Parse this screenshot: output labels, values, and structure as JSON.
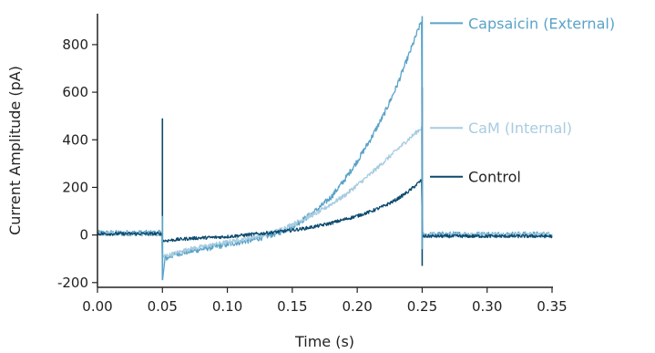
{
  "chart_data": {
    "type": "line",
    "xlabel": "Time (s)",
    "ylabel": "Current Amplitude (pA)",
    "xlim": [
      0.0,
      0.35
    ],
    "ylim": [
      -220,
      930
    ],
    "x_ticks": [
      "0.00",
      "0.05",
      "0.10",
      "0.15",
      "0.20",
      "0.25",
      "0.30",
      "0.35"
    ],
    "x_tick_values": [
      0.0,
      0.05,
      0.1,
      0.15,
      0.2,
      0.25,
      0.3,
      0.35
    ],
    "y_ticks": [
      "-200",
      "0",
      "200",
      "400",
      "600",
      "800"
    ],
    "y_tick_values": [
      -200,
      0,
      200,
      400,
      600,
      800
    ],
    "grid": false,
    "legend_placement": "right, inline labels",
    "series": [
      {
        "name": "Capsaicin (External)",
        "color": "#5aa3c8",
        "noise": 12,
        "points": [
          [
            0.0,
            8
          ],
          [
            0.0495,
            8
          ],
          [
            0.0502,
            -190
          ],
          [
            0.052,
            -100
          ],
          [
            0.06,
            -80
          ],
          [
            0.07,
            -70
          ],
          [
            0.08,
            -60
          ],
          [
            0.09,
            -50
          ],
          [
            0.1,
            -40
          ],
          [
            0.11,
            -30
          ],
          [
            0.12,
            -20
          ],
          [
            0.13,
            -5
          ],
          [
            0.14,
            10
          ],
          [
            0.15,
            35
          ],
          [
            0.16,
            70
          ],
          [
            0.17,
            110
          ],
          [
            0.18,
            160
          ],
          [
            0.19,
            230
          ],
          [
            0.2,
            310
          ],
          [
            0.21,
            400
          ],
          [
            0.22,
            500
          ],
          [
            0.23,
            620
          ],
          [
            0.24,
            760
          ],
          [
            0.2495,
            900
          ],
          [
            0.2502,
            0
          ],
          [
            0.27,
            2
          ],
          [
            0.35,
            2
          ]
        ]
      },
      {
        "name": "CaM (Internal)",
        "color": "#a8cce0",
        "noise": 9,
        "points": [
          [
            0.0,
            5
          ],
          [
            0.0495,
            5
          ],
          [
            0.0502,
            -90
          ],
          [
            0.055,
            -85
          ],
          [
            0.07,
            -60
          ],
          [
            0.08,
            -50
          ],
          [
            0.09,
            -40
          ],
          [
            0.1,
            -30
          ],
          [
            0.11,
            -20
          ],
          [
            0.12,
            -10
          ],
          [
            0.13,
            5
          ],
          [
            0.14,
            20
          ],
          [
            0.15,
            45
          ],
          [
            0.16,
            70
          ],
          [
            0.17,
            95
          ],
          [
            0.18,
            130
          ],
          [
            0.19,
            165
          ],
          [
            0.2,
            210
          ],
          [
            0.21,
            255
          ],
          [
            0.22,
            305
          ],
          [
            0.23,
            355
          ],
          [
            0.24,
            405
          ],
          [
            0.2495,
            450
          ],
          [
            0.2502,
            0
          ],
          [
            0.27,
            0
          ],
          [
            0.35,
            0
          ]
        ]
      },
      {
        "name": "Control",
        "color": "#0d4a6e",
        "noise": 7,
        "points": [
          [
            0.0,
            5
          ],
          [
            0.0495,
            5
          ],
          [
            0.0502,
            -25
          ],
          [
            0.06,
            -20
          ],
          [
            0.07,
            -15
          ],
          [
            0.08,
            -12
          ],
          [
            0.09,
            -10
          ],
          [
            0.1,
            -7
          ],
          [
            0.11,
            -2
          ],
          [
            0.12,
            3
          ],
          [
            0.13,
            8
          ],
          [
            0.14,
            14
          ],
          [
            0.15,
            20
          ],
          [
            0.16,
            28
          ],
          [
            0.17,
            38
          ],
          [
            0.18,
            50
          ],
          [
            0.19,
            65
          ],
          [
            0.2,
            80
          ],
          [
            0.21,
            98
          ],
          [
            0.22,
            120
          ],
          [
            0.23,
            148
          ],
          [
            0.24,
            185
          ],
          [
            0.2495,
            230
          ],
          [
            0.2502,
            -5
          ],
          [
            0.27,
            -5
          ],
          [
            0.35,
            -5
          ]
        ]
      }
    ],
    "spikes": [
      {
        "x": 0.05,
        "top": 490,
        "bottom": -130,
        "color": "#0d4a6e"
      },
      {
        "x": 0.25,
        "top": 620,
        "bottom": -130,
        "color": "#0d4a6e"
      },
      {
        "x": 0.05,
        "top": 80,
        "bottom": -190,
        "color": "#5aa3c8"
      },
      {
        "x": 0.25,
        "top": 920,
        "bottom": -60,
        "color": "#5aa3c8"
      }
    ],
    "legend_entries": [
      {
        "name": "Capsaicin (External)",
        "color": "#5aa3c8",
        "y": 890
      },
      {
        "name": "CaM (Internal)",
        "color": "#a8cce0",
        "y": 450
      },
      {
        "name": "Control",
        "color": "#0d4a6e",
        "y": 245
      }
    ]
  }
}
